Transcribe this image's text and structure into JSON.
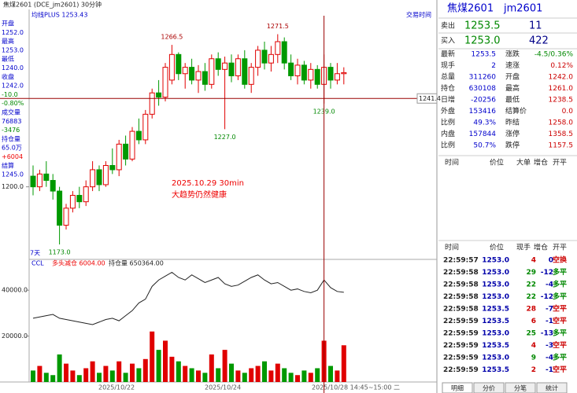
{
  "chart_data": {
    "type": "candlestick",
    "title": "焦煤2601 (DCE_jm2601) 30分钟",
    "subtitle": "均线PLUS 1253.43",
    "trading_time": "交易时间",
    "annotation": [
      "2025.10.29 30min",
      "大趋势仍然健康"
    ],
    "period_label": "7天",
    "ylim": [
      1166,
      1282
    ],
    "yticks": [
      {
        "value": 1200,
        "label": "1200.0"
      }
    ],
    "crosshair": {
      "value": 1241.4,
      "label": "1241.4"
    },
    "open": [
      1205,
      1200,
      1206,
      1203,
      1198,
      1182,
      1190,
      1196,
      1193,
      1200,
      1208,
      1201,
      1210,
      1208,
      1220,
      1213,
      1226,
      1222,
      1234,
      1244,
      1242,
      1250,
      1262,
      1253,
      1256,
      1250,
      1254,
      1248,
      1260,
      1255,
      1258,
      1252,
      1260,
      1248,
      1256,
      1264,
      1258,
      1262,
      1268,
      1258,
      1252,
      1257,
      1250,
      1255,
      1248,
      1256,
      1250,
      1253
    ],
    "high": [
      1210,
      1208,
      1212,
      1206,
      1200,
      1192,
      1198,
      1200,
      1203,
      1212,
      1210,
      1212,
      1218,
      1222,
      1224,
      1228,
      1232,
      1236,
      1246,
      1250,
      1258,
      1266.5,
      1263,
      1258,
      1260,
      1257,
      1258,
      1262,
      1263,
      1261,
      1262,
      1262,
      1264,
      1258,
      1266,
      1268,
      1266,
      1271.5,
      1270,
      1262,
      1260,
      1259,
      1258,
      1257,
      1262,
      1258,
      1258,
      1256
    ],
    "low": [
      1196,
      1198,
      1200,
      1194,
      1173,
      1180,
      1188,
      1190,
      1191,
      1198,
      1198,
      1200,
      1206,
      1205,
      1210,
      1212,
      1220,
      1220,
      1232,
      1238,
      1240,
      1248,
      1250,
      1246,
      1248,
      1244,
      1245,
      1246,
      1252,
      1227,
      1249,
      1250,
      1246,
      1244,
      1252,
      1255,
      1254,
      1258,
      1255,
      1250,
      1248,
      1248,
      1246,
      1246,
      1239,
      1246,
      1248,
      1248
    ],
    "close": [
      1200,
      1206,
      1203,
      1198,
      1182,
      1190,
      1196,
      1193,
      1200,
      1208,
      1201,
      1210,
      1208,
      1220,
      1213,
      1226,
      1222,
      1234,
      1244,
      1242,
      1256,
      1262,
      1253,
      1256,
      1250,
      1254,
      1248,
      1260,
      1255,
      1258,
      1252,
      1260,
      1248,
      1256,
      1264,
      1258,
      1262,
      1268,
      1258,
      1252,
      1257,
      1250,
      1255,
      1248,
      1256,
      1250,
      1253,
      1253.5
    ],
    "value_labels": {
      "high": [
        null,
        null,
        null,
        null,
        null,
        null,
        null,
        null,
        null,
        null,
        null,
        null,
        null,
        null,
        null,
        null,
        null,
        null,
        null,
        null,
        null,
        "1266.5",
        null,
        null,
        null,
        null,
        null,
        null,
        null,
        null,
        null,
        null,
        null,
        null,
        null,
        null,
        null,
        "1271.5",
        null,
        null,
        null,
        null,
        null,
        null,
        null,
        null,
        null,
        null
      ],
      "low": [
        null,
        null,
        null,
        null,
        "1173.0",
        null,
        null,
        null,
        null,
        null,
        null,
        null,
        null,
        null,
        null,
        null,
        null,
        null,
        null,
        null,
        null,
        null,
        null,
        null,
        null,
        null,
        null,
        null,
        null,
        "1227.0",
        null,
        null,
        null,
        null,
        null,
        null,
        null,
        null,
        null,
        null,
        null,
        null,
        null,
        null,
        "1239.0",
        null,
        null,
        null
      ]
    },
    "up_color": "#e00000",
    "down_color": "#009900",
    "sub_label": "CCL",
    "sub_signal": "多头减仓 6004.00",
    "sub_oi": "持仓量 650364.00",
    "volume": [
      5000,
      7000,
      4000,
      3000,
      12000,
      8000,
      5000,
      3000,
      6000,
      9000,
      4000,
      7000,
      5000,
      9000,
      4000,
      8000,
      6000,
      10000,
      22000,
      14000,
      18000,
      11000,
      9000,
      7000,
      6000,
      5000,
      4000,
      12000,
      6000,
      14000,
      8000,
      5000,
      4000,
      6000,
      7000,
      9000,
      5000,
      8000,
      6000,
      4000,
      3000,
      5000,
      4000,
      6000,
      18000,
      7000,
      5000,
      16000
    ],
    "vlim": [
      0,
      50000
    ],
    "vticks": [
      {
        "value": 20000,
        "label": "20000.0"
      },
      {
        "value": 40000,
        "label": "40000.0"
      }
    ],
    "open_interest": [
      630000,
      631000,
      632000,
      633000,
      630000,
      629000,
      628000,
      627000,
      626000,
      625000,
      627000,
      629000,
      630000,
      628000,
      632000,
      636000,
      642000,
      645000,
      655000,
      660000,
      663000,
      666000,
      662000,
      660000,
      664000,
      661000,
      658000,
      660000,
      662000,
      657000,
      655000,
      656000,
      659000,
      662000,
      664000,
      660000,
      657000,
      658000,
      655000,
      652000,
      653000,
      651000,
      650000,
      652000,
      660000,
      654000,
      651000,
      650364
    ],
    "oilim": [
      580000,
      670000
    ],
    "x_labels": [
      "2025/10/22",
      "2025/10/24",
      "2025/10/28 14:45~15:00 二"
    ]
  },
  "side_info": [
    "开盘",
    "1252.0",
    "最高",
    "1253.0",
    "最低",
    "1240.0",
    "收盘",
    "1242.0",
    "-10.0",
    "-0.80%",
    "成交量",
    "76883",
    "-3476",
    "持仓量",
    "65.0万",
    "+6004",
    "结算",
    "1245.0"
  ],
  "quote": {
    "name": "焦煤2601",
    "code": "jm2601",
    "ask": [
      "卖出",
      "1253.5",
      "11"
    ],
    "bid": [
      "买入",
      "1253.0",
      "422"
    ],
    "stats": [
      [
        "最新",
        "1253.5",
        "涨跌",
        "-4.5/0.36%"
      ],
      [
        "现手",
        "2",
        "速涨",
        "0.12%"
      ],
      [
        "总量",
        "311260",
        "开盘",
        "1242.0"
      ],
      [
        "持仓",
        "630108",
        "最高",
        "1261.0"
      ],
      [
        "日增",
        "-20256",
        "最低",
        "1238.5"
      ],
      [
        "外盘",
        "153416",
        "结算价",
        "0.0"
      ],
      [
        "比例",
        "49.3%",
        "昨结",
        "1258.0"
      ],
      [
        "内盘",
        "157844",
        "涨停",
        "1358.5"
      ],
      [
        "比例",
        "50.7%",
        "跌停",
        "1157.5"
      ]
    ],
    "big_header": [
      "时间",
      "价位",
      "大单",
      "增仓",
      "开平"
    ],
    "trade_header": [
      "时间",
      "价位",
      "现手",
      "增仓",
      "开平"
    ],
    "trades": [
      [
        "22:59:57",
        "1253.0",
        "4",
        "0",
        "空换"
      ],
      [
        "22:59:58",
        "1253.0",
        "29",
        "-12",
        "多平"
      ],
      [
        "22:59:58",
        "1253.0",
        "22",
        "-4",
        "多平"
      ],
      [
        "22:59:58",
        "1253.0",
        "22",
        "-12",
        "多平"
      ],
      [
        "22:59:58",
        "1253.5",
        "28",
        "-7",
        "空平"
      ],
      [
        "22:59:59",
        "1253.5",
        "6",
        "-1",
        "空平"
      ],
      [
        "22:59:59",
        "1253.0",
        "25",
        "-13",
        "多平"
      ],
      [
        "22:59:59",
        "1253.5",
        "4",
        "-3",
        "空平"
      ],
      [
        "22:59:59",
        "1253.0",
        "9",
        "-4",
        "多平"
      ],
      [
        "22:59:59",
        "1253.5",
        "2",
        "-1",
        "空平"
      ]
    ],
    "tabs": [
      "明细",
      "分价",
      "分笔",
      "统计"
    ]
  }
}
